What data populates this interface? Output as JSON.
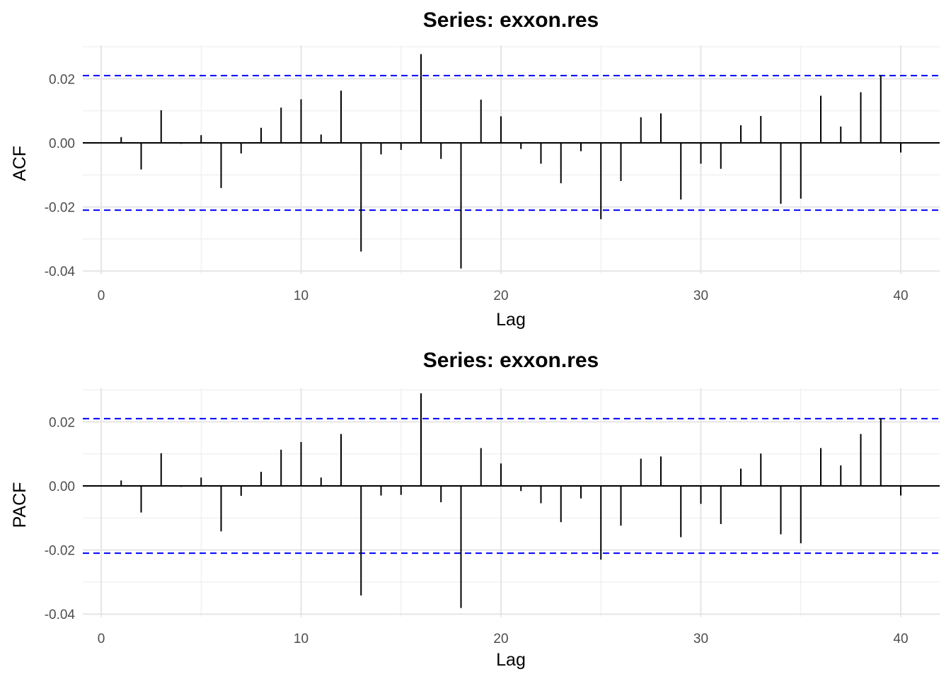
{
  "chart_data": [
    {
      "type": "bar",
      "title": "Series: exxon.res",
      "xlabel": "Lag",
      "ylabel": "ACF",
      "xlim": [
        -1,
        42
      ],
      "ylim": [
        -0.04,
        0.03
      ],
      "x_ticks": [
        0,
        10,
        20,
        30,
        40
      ],
      "x_tick_labels": [
        "0",
        "10",
        "20",
        "30",
        "40"
      ],
      "y_ticks": [
        -0.04,
        -0.02,
        0.0,
        0.02
      ],
      "y_tick_labels": [
        "-0.04",
        "-0.02",
        "0.00",
        "0.02"
      ],
      "confidence_bounds": [
        0.021,
        -0.021
      ],
      "bound_color": "#0000ff",
      "grid": true,
      "lags": [
        1,
        2,
        3,
        4,
        5,
        6,
        7,
        8,
        9,
        10,
        11,
        12,
        13,
        14,
        15,
        16,
        17,
        18,
        19,
        20,
        21,
        22,
        23,
        24,
        25,
        26,
        27,
        28,
        29,
        30,
        31,
        32,
        33,
        34,
        35,
        36,
        37,
        38,
        39,
        40
      ],
      "values": [
        0.0018,
        -0.0083,
        0.0102,
        -0.0003,
        0.0024,
        -0.0141,
        -0.0033,
        0.0047,
        0.011,
        0.0136,
        0.0026,
        0.0163,
        -0.0339,
        -0.0036,
        -0.0022,
        0.0277,
        -0.005,
        -0.0392,
        0.0135,
        0.0083,
        -0.0019,
        -0.0065,
        -0.0126,
        -0.0026,
        -0.0238,
        -0.0119,
        0.008,
        0.0092,
        -0.0177,
        -0.0065,
        -0.0081,
        0.0055,
        0.0084,
        -0.019,
        -0.0174,
        0.0147,
        0.0051,
        0.0158,
        0.0211,
        -0.003
      ]
    },
    {
      "type": "bar",
      "title": "Series: exxon.res",
      "xlabel": "Lag",
      "ylabel": "PACF",
      "xlim": [
        -1,
        42
      ],
      "ylim": [
        -0.04,
        0.03
      ],
      "x_ticks": [
        0,
        10,
        20,
        30,
        40
      ],
      "x_tick_labels": [
        "0",
        "10",
        "20",
        "30",
        "40"
      ],
      "y_ticks": [
        -0.04,
        -0.02,
        0.0,
        0.02
      ],
      "y_tick_labels": [
        "-0.04",
        "-0.02",
        "0.00",
        "0.02"
      ],
      "confidence_bounds": [
        0.021,
        -0.021
      ],
      "bound_color": "#0000ff",
      "grid": true,
      "lags": [
        1,
        2,
        3,
        4,
        5,
        6,
        7,
        8,
        9,
        10,
        11,
        12,
        13,
        14,
        15,
        16,
        17,
        18,
        19,
        20,
        21,
        22,
        23,
        24,
        25,
        26,
        27,
        28,
        29,
        30,
        31,
        32,
        33,
        34,
        35,
        36,
        37,
        38,
        39,
        40
      ],
      "values": [
        0.0017,
        -0.0083,
        0.0102,
        -0.0003,
        0.0026,
        -0.0142,
        -0.0031,
        0.0044,
        0.0113,
        0.0137,
        0.0026,
        0.0162,
        -0.0342,
        -0.003,
        -0.0028,
        0.0289,
        -0.0051,
        -0.0381,
        0.0118,
        0.007,
        -0.0016,
        -0.0054,
        -0.0113,
        -0.0039,
        -0.023,
        -0.0124,
        0.0085,
        0.0092,
        -0.016,
        -0.0056,
        -0.0119,
        0.0054,
        0.0101,
        -0.0151,
        -0.0179,
        0.0118,
        0.0064,
        0.0162,
        0.0211,
        -0.003
      ]
    }
  ]
}
